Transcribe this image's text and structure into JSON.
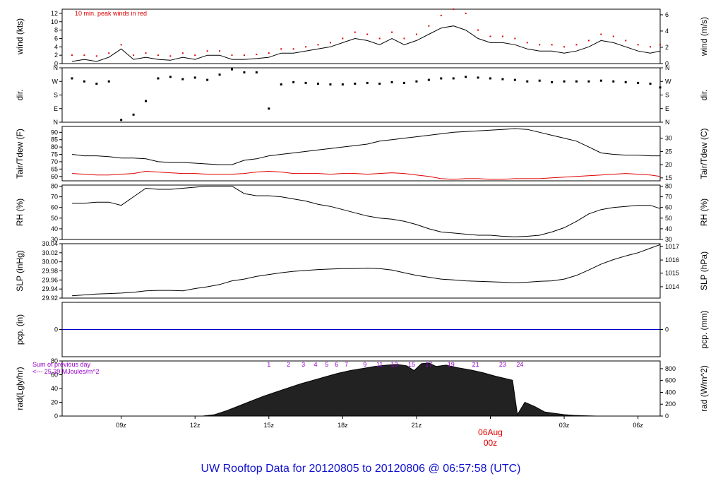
{
  "title": "UW Rooftop Data for 20120805  to  20120806 @ 06:57:58  (UTC)",
  "colors": {
    "main": "#000000",
    "dew": "#dd0000",
    "pcp": "#0000cc",
    "peak": "#dd0000",
    "note": "#9900cc",
    "title": "#1010d0",
    "date": "#dd0000"
  },
  "date_marker": {
    "day": "06Aug",
    "hour": "00z",
    "x_hour": 24
  },
  "x_ticks": [
    {
      "h": 9,
      "label": "09z"
    },
    {
      "h": 12,
      "label": "12z"
    },
    {
      "h": 15,
      "label": "15z"
    },
    {
      "h": 18,
      "label": "18z"
    },
    {
      "h": 21,
      "label": "21z"
    },
    {
      "h": 27,
      "label": "03z"
    },
    {
      "h": 30,
      "label": "06z"
    }
  ],
  "chart_data": [
    {
      "id": "wind",
      "type": "line",
      "ylabel_left": "wind (kts)",
      "ylabel_right": "wind (m/s)",
      "note": "10 min. peak winds in red",
      "ylim": [
        0,
        13
      ],
      "left_ticks": [
        "0",
        "2",
        "4",
        "6",
        "8",
        "10",
        "12"
      ],
      "right_ticks": [
        {
          "v": 0,
          "l": "0"
        },
        {
          "v": 3.89,
          "l": "2"
        },
        {
          "v": 7.78,
          "l": "4"
        },
        {
          "v": 11.66,
          "l": "6"
        }
      ],
      "x": [
        7.0,
        7.5,
        8.0,
        8.5,
        9.0,
        9.5,
        10.0,
        10.5,
        11.0,
        11.5,
        12.0,
        12.5,
        13.0,
        13.5,
        14.0,
        14.5,
        15.0,
        15.5,
        16.0,
        16.5,
        17.0,
        17.5,
        18.0,
        18.5,
        19.0,
        19.5,
        20.0,
        20.5,
        21.0,
        21.5,
        22.0,
        22.5,
        23.0,
        23.5,
        24.0,
        24.5,
        25.0,
        25.5,
        26.0,
        26.5,
        27.0,
        27.5,
        28.0,
        28.5,
        29.0,
        29.5,
        30.0,
        30.5,
        30.9
      ],
      "values": [
        0.5,
        1.0,
        0.5,
        1.5,
        3.5,
        1.0,
        1.5,
        1.0,
        0.8,
        1.5,
        1.0,
        2.0,
        2.0,
        1.0,
        1.0,
        1.2,
        1.5,
        2.5,
        2.5,
        3.0,
        3.5,
        4.0,
        5.0,
        6.0,
        5.5,
        4.5,
        6.0,
        4.5,
        5.5,
        7.0,
        8.5,
        9.0,
        8.0,
        6.0,
        5.0,
        5.0,
        4.5,
        3.5,
        3.0,
        3.0,
        2.5,
        3.0,
        4.0,
        5.5,
        5.0,
        4.0,
        3.0,
        2.5,
        3.0
      ],
      "peaks": [
        2,
        2,
        1.8,
        2.5,
        4.5,
        2,
        2.5,
        2,
        1.8,
        2.5,
        2,
        3,
        3,
        2,
        2,
        2.2,
        2.5,
        3.5,
        3.5,
        4,
        4.5,
        5,
        6,
        7.5,
        7,
        6,
        7.5,
        6,
        7,
        9,
        11.5,
        13,
        12,
        8,
        6.5,
        6.5,
        6,
        5,
        4.5,
        4.5,
        4,
        4.5,
        5.5,
        7,
        6.5,
        5.5,
        4.5,
        4,
        4.5
      ]
    },
    {
      "id": "dir",
      "type": "scatter",
      "ylabel_left": "dir.",
      "ylabel_right": "dir.",
      "ylim": [
        0,
        360
      ],
      "tick_labels": [
        "N",
        "E",
        "S",
        "W",
        "N"
      ],
      "x": [
        7.0,
        7.5,
        8.0,
        8.5,
        9.0,
        9.5,
        10.0,
        10.5,
        11.0,
        11.5,
        12.0,
        12.5,
        13.0,
        13.5,
        14.0,
        14.5,
        15.0,
        15.5,
        16.0,
        16.5,
        17.0,
        17.5,
        18.0,
        18.5,
        19.0,
        19.5,
        20.0,
        20.5,
        21.0,
        21.5,
        22.0,
        22.5,
        23.0,
        23.5,
        24.0,
        24.5,
        25.0,
        25.5,
        26.0,
        26.5,
        27.0,
        27.5,
        28.0,
        28.5,
        29.0,
        29.5,
        30.0,
        30.5,
        30.9
      ],
      "values": [
        290,
        270,
        255,
        270,
        15,
        50,
        140,
        290,
        300,
        285,
        295,
        280,
        315,
        350,
        330,
        330,
        90,
        250,
        265,
        260,
        255,
        250,
        250,
        255,
        260,
        255,
        265,
        260,
        270,
        280,
        290,
        290,
        300,
        295,
        290,
        285,
        280,
        270,
        275,
        265,
        270,
        270,
        270,
        275,
        270,
        265,
        260,
        255,
        230
      ]
    },
    {
      "id": "temp",
      "type": "line",
      "ylabel_left": "Tair/Tdew (F)",
      "ylabel_right": "Tair/Tdew (C)",
      "ylim": [
        57,
        94
      ],
      "left_ticks": [
        "60",
        "65",
        "70",
        "75",
        "80",
        "85",
        "90"
      ],
      "right_ticks": [
        {
          "v": 59,
          "l": "15"
        },
        {
          "v": 68,
          "l": "20"
        },
        {
          "v": 77,
          "l": "25"
        },
        {
          "v": 86,
          "l": "30"
        }
      ],
      "x": [
        7.0,
        7.5,
        8.0,
        8.5,
        9.0,
        9.5,
        10.0,
        10.5,
        11.0,
        11.5,
        12.0,
        12.5,
        13.0,
        13.5,
        14.0,
        14.5,
        15.0,
        15.5,
        16.0,
        16.5,
        17.0,
        17.5,
        18.0,
        18.5,
        19.0,
        19.5,
        20.0,
        20.5,
        21.0,
        21.5,
        22.0,
        22.5,
        23.0,
        23.5,
        24.0,
        24.5,
        25.0,
        25.5,
        26.0,
        26.5,
        27.0,
        27.5,
        28.0,
        28.5,
        29.0,
        29.5,
        30.0,
        30.5,
        30.9
      ],
      "series": [
        {
          "name": "Tair",
          "values": [
            75,
            74,
            74,
            73.5,
            72.5,
            72.5,
            72,
            70,
            69.5,
            69.5,
            69,
            68.5,
            68,
            68,
            71,
            72,
            74,
            75,
            76,
            77,
            78,
            79,
            80,
            81,
            82,
            84,
            85,
            86,
            87,
            88,
            89,
            90,
            90.5,
            91,
            91.5,
            92,
            92.5,
            92,
            90,
            88,
            86,
            84,
            80,
            76,
            75,
            74.5,
            74.5,
            74,
            74
          ]
        },
        {
          "name": "Tdew",
          "values": [
            62,
            61.5,
            61,
            61,
            61.5,
            62,
            63.5,
            63,
            62.5,
            62,
            62,
            61.5,
            61.5,
            61.5,
            62,
            63,
            63.5,
            63,
            62,
            62,
            62,
            61.5,
            62,
            62,
            61.5,
            62,
            62.5,
            62,
            61,
            60,
            58.5,
            58,
            58.5,
            58.5,
            58,
            58,
            58.5,
            58.5,
            58.5,
            59,
            59.5,
            60,
            60.5,
            61,
            61.5,
            62,
            61.5,
            61,
            60
          ]
        }
      ]
    },
    {
      "id": "rh",
      "type": "line",
      "ylabel_left": "RH (%)",
      "ylabel_right": "RH (%)",
      "ylim": [
        30,
        81
      ],
      "left_ticks": [
        "30",
        "40",
        "50",
        "60",
        "70",
        "80"
      ],
      "right_ticks": [
        {
          "v": 30,
          "l": "30"
        },
        {
          "v": 40,
          "l": "40"
        },
        {
          "v": 50,
          "l": "50"
        },
        {
          "v": 60,
          "l": "60"
        },
        {
          "v": 70,
          "l": "70"
        },
        {
          "v": 80,
          "l": "80"
        }
      ],
      "x": [
        7.0,
        7.5,
        8.0,
        8.5,
        9.0,
        9.5,
        10.0,
        10.5,
        11.0,
        11.5,
        12.0,
        12.5,
        13.0,
        13.5,
        14.0,
        14.5,
        15.0,
        15.5,
        16.0,
        16.5,
        17.0,
        17.5,
        18.0,
        18.5,
        19.0,
        19.5,
        20.0,
        20.5,
        21.0,
        21.5,
        22.0,
        22.5,
        23.0,
        23.5,
        24.0,
        24.5,
        25.0,
        25.5,
        26.0,
        26.5,
        27.0,
        27.5,
        28.0,
        28.5,
        29.0,
        29.5,
        30.0,
        30.5,
        30.9
      ],
      "values": [
        64,
        64,
        65,
        65,
        62,
        70,
        78,
        77,
        77,
        78,
        79,
        80,
        80,
        80,
        73,
        71,
        71,
        70,
        68,
        66,
        63,
        61,
        58,
        55,
        52,
        50,
        49,
        47,
        44,
        40,
        37,
        36,
        35,
        34,
        34,
        33,
        32.5,
        33,
        34,
        37,
        41,
        47,
        54,
        58,
        60,
        61,
        62,
        62,
        59
      ]
    },
    {
      "id": "slp",
      "type": "line",
      "ylabel_left": "SLP (inHg)",
      "ylabel_right": "SLP (hPa)",
      "ylim": [
        29.92,
        30.04
      ],
      "left_ticks": [
        "29.92",
        "29.94",
        "29.96",
        "29.98",
        "30.00",
        "30.02",
        "30.04"
      ],
      "right_ticks": [
        {
          "v": 29.945,
          "l": "1014"
        },
        {
          "v": 29.975,
          "l": "1015"
        },
        {
          "v": 30.004,
          "l": "1016"
        },
        {
          "v": 30.034,
          "l": "1017"
        }
      ],
      "x": [
        7.0,
        7.5,
        8.0,
        8.5,
        9.0,
        9.5,
        10.0,
        10.5,
        11.0,
        11.5,
        12.0,
        12.5,
        13.0,
        13.5,
        14.0,
        14.5,
        15.0,
        15.5,
        16.0,
        16.5,
        17.0,
        17.5,
        18.0,
        18.5,
        19.0,
        19.5,
        20.0,
        20.5,
        21.0,
        21.5,
        22.0,
        22.5,
        23.0,
        23.5,
        24.0,
        24.5,
        25.0,
        25.5,
        26.0,
        26.5,
        27.0,
        27.5,
        28.0,
        28.5,
        29.0,
        29.5,
        30.0,
        30.5,
        30.9
      ],
      "values": [
        29.925,
        29.927,
        29.929,
        29.93,
        29.931,
        29.933,
        29.936,
        29.937,
        29.937,
        29.936,
        29.941,
        29.945,
        29.95,
        29.958,
        29.962,
        29.968,
        29.972,
        29.976,
        29.979,
        29.981,
        29.983,
        29.984,
        29.985,
        29.985,
        29.986,
        29.985,
        29.982,
        29.976,
        29.97,
        29.966,
        29.962,
        29.96,
        29.958,
        29.957,
        29.956,
        29.955,
        29.954,
        29.955,
        29.957,
        29.958,
        29.962,
        29.97,
        29.982,
        29.995,
        30.005,
        30.013,
        30.02,
        30.03,
        30.038
      ]
    },
    {
      "id": "pcp",
      "type": "line",
      "ylabel_left": "pcp. (in)",
      "ylabel_right": "pcp. (mm)",
      "ylim": [
        -0.5,
        0.5
      ],
      "left_ticks": [
        "0"
      ],
      "right_ticks": [
        {
          "v": 0,
          "l": "0"
        }
      ],
      "x": [
        6.6,
        30.9
      ],
      "values": [
        0,
        0
      ]
    },
    {
      "id": "rad",
      "type": "area",
      "ylabel_left": "rad(Lgly/hr)",
      "ylabel_right": "rad (W/m^2)",
      "note_lines": [
        "Sum of previous day",
        "<--- 25.29 MJoules/m^2"
      ],
      "ylim": [
        0,
        80
      ],
      "left_ticks": [
        "0",
        "20",
        "40",
        "60",
        "80"
      ],
      "right_ticks": [
        {
          "v": 0,
          "l": "0"
        },
        {
          "v": 17.2,
          "l": "200"
        },
        {
          "v": 34.4,
          "l": "400"
        },
        {
          "v": 51.6,
          "l": "600"
        },
        {
          "v": 68.8,
          "l": "800"
        }
      ],
      "hour_marks": [
        "1",
        "2",
        "3",
        "4",
        "5",
        "6",
        "7",
        "9",
        "11",
        "13",
        "15",
        "17",
        "19",
        "21",
        "23",
        "24"
      ],
      "hour_mark_x": [
        15.0,
        15.8,
        16.4,
        16.9,
        17.35,
        17.75,
        18.15,
        18.9,
        19.5,
        20.1,
        20.8,
        21.5,
        22.4,
        23.4,
        24.5,
        25.2
      ],
      "x": [
        12.3,
        12.8,
        13.3,
        13.8,
        14.3,
        14.8,
        15.3,
        15.8,
        16.3,
        16.8,
        17.3,
        17.8,
        18.3,
        18.8,
        19.3,
        19.8,
        20.2,
        20.6,
        20.9,
        21.2,
        21.5,
        21.8,
        22.2,
        22.7,
        23.2,
        23.7,
        24.2,
        24.9,
        25.1,
        25.4,
        25.8,
        26.2,
        26.6,
        27.0,
        27.4,
        27.8,
        28.3
      ],
      "values": [
        0,
        2,
        8,
        15,
        22,
        29,
        35,
        41,
        47,
        52,
        57,
        62,
        66,
        69,
        72,
        74,
        75,
        73,
        66,
        76,
        77,
        72,
        74,
        70,
        67,
        63,
        58,
        52,
        2,
        20,
        14,
        6,
        4,
        2,
        1,
        0.5,
        0
      ]
    }
  ]
}
